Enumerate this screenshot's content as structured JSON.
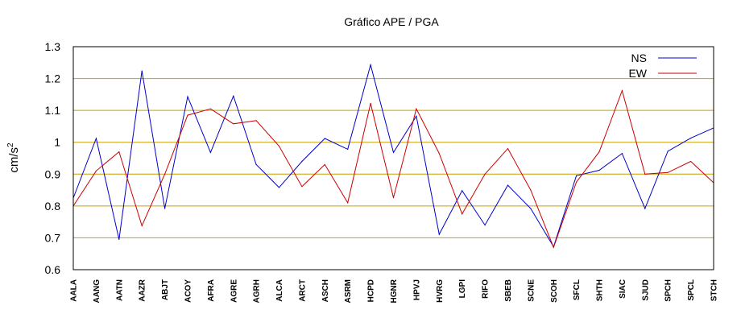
{
  "chart_data": {
    "type": "line",
    "title": "Gráfico  APE / PGA",
    "ylabel": "cm/s",
    "ylabel_sup": "2",
    "xlabel": "",
    "ylim": [
      0.6,
      1.3
    ],
    "yticks": [
      "0.6",
      "0.7",
      "0.8",
      "0.9",
      "1",
      "1.1",
      "1.2",
      "1.3"
    ],
    "grid": "horizontal",
    "grid_color": "#c8a000",
    "legend_position": "top-right",
    "categories": [
      "AALA",
      "AANG",
      "AATN",
      "AAZR",
      "ABJT",
      "ACOY",
      "AFRA",
      "AGRE",
      "AGRH",
      "ALCA",
      "ARCT",
      "ASCH",
      "ASRM",
      "HCPD",
      "HGNR",
      "HPVJ",
      "HVRG",
      "LGPI",
      "RIFO",
      "SBEB",
      "SCNE",
      "SCOH",
      "SFCL",
      "SHTH",
      "SIAC",
      "SJUD",
      "SPCH",
      "SPCL",
      "STCH"
    ],
    "series": [
      {
        "name": "NS",
        "color": "#0000cc",
        "values": [
          0.825,
          1.012,
          0.695,
          1.224,
          0.792,
          1.143,
          0.968,
          1.145,
          0.93,
          0.858,
          0.94,
          1.012,
          0.978,
          1.243,
          0.968,
          1.082,
          0.711,
          0.848,
          0.74,
          0.865,
          0.792,
          0.672,
          0.895,
          0.912,
          0.965,
          0.792,
          0.972,
          1.013,
          1.045
        ]
      },
      {
        "name": "EW",
        "color": "#cc0000",
        "values": [
          0.8,
          0.91,
          0.97,
          0.738,
          0.9,
          1.085,
          1.105,
          1.058,
          1.068,
          0.988,
          0.861,
          0.93,
          0.81,
          1.122,
          0.826,
          1.105,
          0.965,
          0.775,
          0.9,
          0.98,
          0.85,
          0.67,
          0.875,
          0.97,
          1.162,
          0.9,
          0.905,
          0.94,
          0.873
        ]
      }
    ]
  }
}
